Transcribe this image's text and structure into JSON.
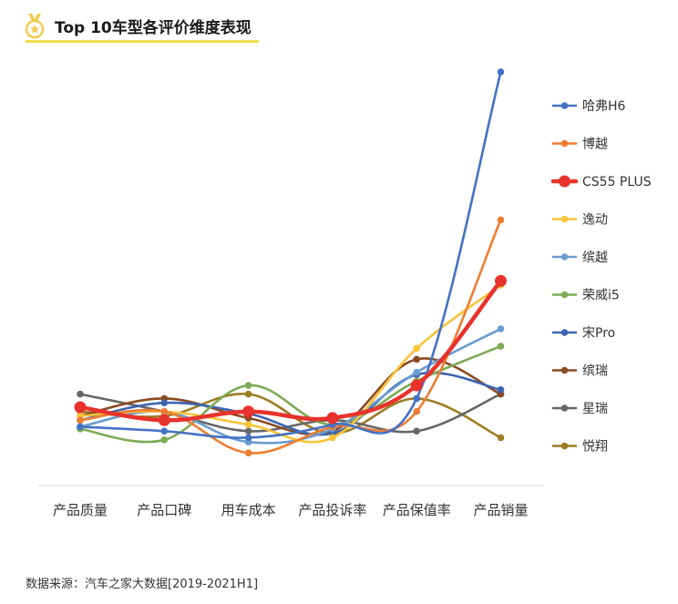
{
  "header": {
    "title": "Top 10车型各评价维度表现",
    "icon": "medal-icon",
    "accent_color": "#f2c94c"
  },
  "source": "数据来源：汽车之家大数据[2019-2021H1]",
  "chart_data": {
    "type": "line",
    "title": "Top 10车型各评价维度表现",
    "categories": [
      "产品质量",
      "产品口碑",
      "用车成本",
      "产品投诉率",
      "产品保值率",
      "产品销量"
    ],
    "ylim": [
      0,
      100
    ],
    "grid": false,
    "legend_position": "right",
    "series": [
      {
        "name": "哈弗H6",
        "color": "#4472c4",
        "values": [
          13.5,
          12.5,
          11,
          14,
          20,
          95
        ]
      },
      {
        "name": "博越",
        "color": "#ed7d31",
        "values": [
          15,
          17,
          7.5,
          13.5,
          17,
          61
        ]
      },
      {
        "name": "CS55 PLUS",
        "color": "#e8322c",
        "values": [
          18,
          15,
          17,
          15.5,
          23,
          47
        ]
      },
      {
        "name": "逸动",
        "color": "#f7c338",
        "values": [
          16,
          17,
          14,
          11,
          31.5,
          46
        ]
      },
      {
        "name": "缤越",
        "color": "#6a9ccf",
        "values": [
          13.5,
          17,
          10,
          13,
          26,
          36
        ]
      },
      {
        "name": "荣威i5",
        "color": "#7eab55",
        "values": [
          13,
          10.5,
          23,
          14,
          24,
          32
        ]
      },
      {
        "name": "宋Pro",
        "color": "#3c64b0",
        "values": [
          15,
          19,
          16.5,
          12,
          25.5,
          22
        ]
      },
      {
        "name": "缤瑞",
        "color": "#8a4a22",
        "values": [
          16,
          20,
          15.5,
          12.5,
          29,
          21
        ]
      },
      {
        "name": "星瑞",
        "color": "#676767",
        "values": [
          21,
          17,
          12.5,
          15,
          12.5,
          21
        ]
      },
      {
        "name": "悦翔",
        "color": "#9c7d25",
        "values": [
          17,
          16,
          21,
          12,
          20,
          11
        ]
      }
    ]
  }
}
